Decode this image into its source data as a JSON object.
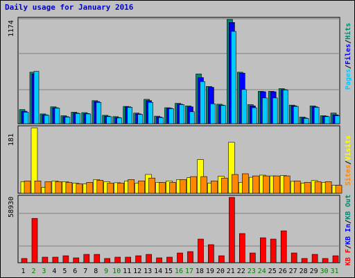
{
  "title": "Daily usage for January 2016",
  "colors": {
    "pages": "#008870",
    "files": "#0000ff",
    "hits": "#00ccff",
    "visits": "#ffff00",
    "sites": "#ff8800",
    "kbin": "#0000ff",
    "kbout": "#008870",
    "kbf": "#ff0000",
    "weekend_label": "#008000",
    "weekday_label": "#000000"
  },
  "chart_data": [
    {
      "type": "bar",
      "panel": "hits",
      "ymax_label": "1174",
      "ylim": [
        0,
        1174
      ],
      "legend": [
        {
          "text": "Pages",
          "color": "#00ccff"
        },
        {
          "text": "/",
          "color": "#000000"
        },
        {
          "text": "Files",
          "color": "#0000ff"
        },
        {
          "text": "/",
          "color": "#000000"
        },
        {
          "text": "Hits",
          "color": "#008870"
        }
      ],
      "categories": [
        "1",
        "2",
        "3",
        "4",
        "5",
        "6",
        "7",
        "8",
        "9",
        "10",
        "11",
        "12",
        "13",
        "14",
        "15",
        "16",
        "17",
        "18",
        "19",
        "20",
        "21",
        "22",
        "23",
        "24",
        "25",
        "26",
        "27",
        "28",
        "29",
        "30",
        "31"
      ],
      "series": [
        {
          "name": "Hits",
          "color": "#008870",
          "values": [
            160,
            580,
            110,
            190,
            90,
            130,
            125,
            260,
            95,
            80,
            195,
            120,
            275,
            85,
            180,
            230,
            200,
            560,
            420,
            220,
            1174,
            580,
            215,
            365,
            365,
            395,
            210,
            75,
            200,
            90,
            120
          ]
        },
        {
          "name": "Files",
          "color": "#0000ff",
          "values": [
            140,
            560,
            100,
            180,
            80,
            120,
            115,
            250,
            85,
            70,
            190,
            110,
            260,
            75,
            175,
            220,
            190,
            520,
            410,
            210,
            1140,
            570,
            200,
            360,
            360,
            385,
            200,
            65,
            190,
            85,
            100
          ]
        },
        {
          "name": "Pages",
          "color": "#00ccff",
          "values": [
            130,
            590,
            95,
            175,
            75,
            115,
            110,
            240,
            80,
            65,
            185,
            105,
            240,
            70,
            170,
            215,
            135,
            475,
            225,
            205,
            1040,
            385,
            180,
            290,
            290,
            380,
            195,
            60,
            185,
            80,
            90
          ]
        }
      ]
    },
    {
      "type": "bar",
      "panel": "visits",
      "ymax_label": "181",
      "ylim": [
        0,
        181
      ],
      "legend": [
        {
          "text": "Sites",
          "color": "#ff8800"
        },
        {
          "text": "/",
          "color": "#000000"
        },
        {
          "text": "Visits",
          "color": "#ffff00"
        }
      ],
      "categories": [
        "1",
        "2",
        "3",
        "4",
        "5",
        "6",
        "7",
        "8",
        "9",
        "10",
        "11",
        "12",
        "13",
        "14",
        "15",
        "16",
        "17",
        "18",
        "19",
        "20",
        "21",
        "22",
        "23",
        "24",
        "25",
        "26",
        "27",
        "28",
        "29",
        "30",
        "31"
      ],
      "series": [
        {
          "name": "Visits",
          "color": "#ffff00",
          "values": [
            32,
            181,
            16,
            34,
            32,
            28,
            26,
            38,
            32,
            29,
            34,
            28,
            52,
            30,
            34,
            38,
            43,
            93,
            28,
            47,
            141,
            30,
            44,
            50,
            48,
            49,
            33,
            28,
            35,
            30,
            22
          ]
        },
        {
          "name": "Sites",
          "color": "#ff8800",
          "values": [
            34,
            34,
            32,
            32,
            30,
            26,
            30,
            36,
            28,
            28,
            38,
            34,
            42,
            30,
            30,
            38,
            46,
            46,
            34,
            42,
            52,
            54,
            48,
            48,
            48,
            48,
            34,
            30,
            32,
            32,
            22
          ]
        }
      ]
    },
    {
      "type": "bar",
      "panel": "kbytes",
      "ymax_label": "58930",
      "ylim": [
        0,
        58930
      ],
      "legend": [
        {
          "text": "KB F",
          "color": "#ff0000"
        },
        {
          "text": "/",
          "color": "#000000"
        },
        {
          "text": "KB In",
          "color": "#0000ff"
        },
        {
          "text": "/",
          "color": "#000000"
        },
        {
          "text": "KB Out",
          "color": "#008870"
        }
      ],
      "categories": [
        "1",
        "2",
        "3",
        "4",
        "5",
        "6",
        "7",
        "8",
        "9",
        "10",
        "11",
        "12",
        "13",
        "14",
        "15",
        "16",
        "17",
        "18",
        "19",
        "20",
        "21",
        "22",
        "23",
        "24",
        "25",
        "26",
        "27",
        "28",
        "29",
        "30",
        "31"
      ],
      "series": [
        {
          "name": "KB F",
          "color": "#ff0000",
          "values": [
            3800,
            40000,
            5000,
            5000,
            6300,
            4400,
            7500,
            7500,
            3800,
            5000,
            5000,
            6300,
            7500,
            4400,
            5000,
            8800,
            10000,
            21300,
            16300,
            6300,
            58930,
            26300,
            8800,
            22500,
            21300,
            28800,
            8800,
            3800,
            7500,
            3800,
            6300
          ]
        }
      ]
    }
  ],
  "x_labels": [
    {
      "text": "1",
      "weekend": false
    },
    {
      "text": "2",
      "weekend": true
    },
    {
      "text": "3",
      "weekend": true
    },
    {
      "text": "4",
      "weekend": false
    },
    {
      "text": "5",
      "weekend": false
    },
    {
      "text": "6",
      "weekend": false
    },
    {
      "text": "7",
      "weekend": false
    },
    {
      "text": "8",
      "weekend": false
    },
    {
      "text": "9",
      "weekend": true
    },
    {
      "text": "10",
      "weekend": true
    },
    {
      "text": "11",
      "weekend": false
    },
    {
      "text": "12",
      "weekend": false
    },
    {
      "text": "13",
      "weekend": false
    },
    {
      "text": "14",
      "weekend": false
    },
    {
      "text": "15",
      "weekend": false
    },
    {
      "text": "16",
      "weekend": true
    },
    {
      "text": "17",
      "weekend": true
    },
    {
      "text": "18",
      "weekend": false
    },
    {
      "text": "19",
      "weekend": false
    },
    {
      "text": "20",
      "weekend": false
    },
    {
      "text": "21",
      "weekend": false
    },
    {
      "text": "22",
      "weekend": false
    },
    {
      "text": "23",
      "weekend": true
    },
    {
      "text": "24",
      "weekend": true
    },
    {
      "text": "25",
      "weekend": false
    },
    {
      "text": "26",
      "weekend": false
    },
    {
      "text": "27",
      "weekend": false
    },
    {
      "text": "28",
      "weekend": false
    },
    {
      "text": "29",
      "weekend": false
    },
    {
      "text": "30",
      "weekend": true
    },
    {
      "text": "31",
      "weekend": true
    }
  ]
}
